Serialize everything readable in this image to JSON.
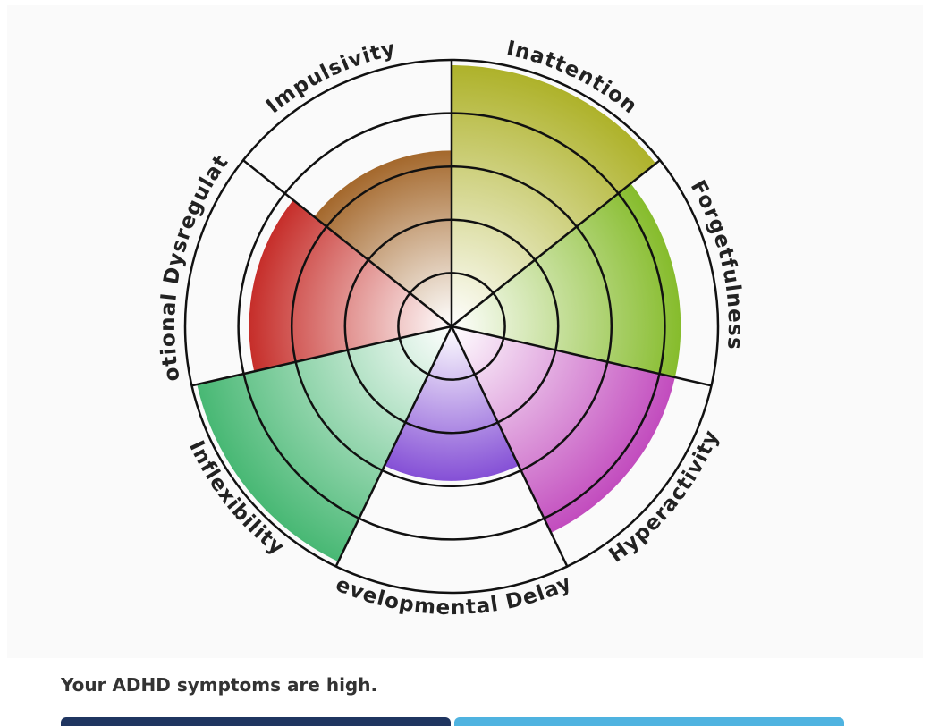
{
  "chart_data": {
    "type": "polar-area",
    "categories": [
      "Inattention",
      "Forgetfulness",
      "Hyperactivity",
      "Developmental Delays",
      "Inflexibility",
      "Emotional Dysregulation",
      "Impulsivity"
    ],
    "values": [
      4.9,
      4.3,
      4.3,
      2.9,
      4.9,
      3.8,
      3.3
    ],
    "colors": [
      "#aeb22a",
      "#86bc2c",
      "#c24cbe",
      "#8550d6",
      "#48b874",
      "#c62e2a",
      "#a4682c"
    ],
    "ylim": [
      0,
      5
    ],
    "yticks": [
      1,
      2,
      3,
      4,
      5
    ],
    "grid": true
  },
  "result": {
    "text": "Your ADHD symptoms are high."
  }
}
